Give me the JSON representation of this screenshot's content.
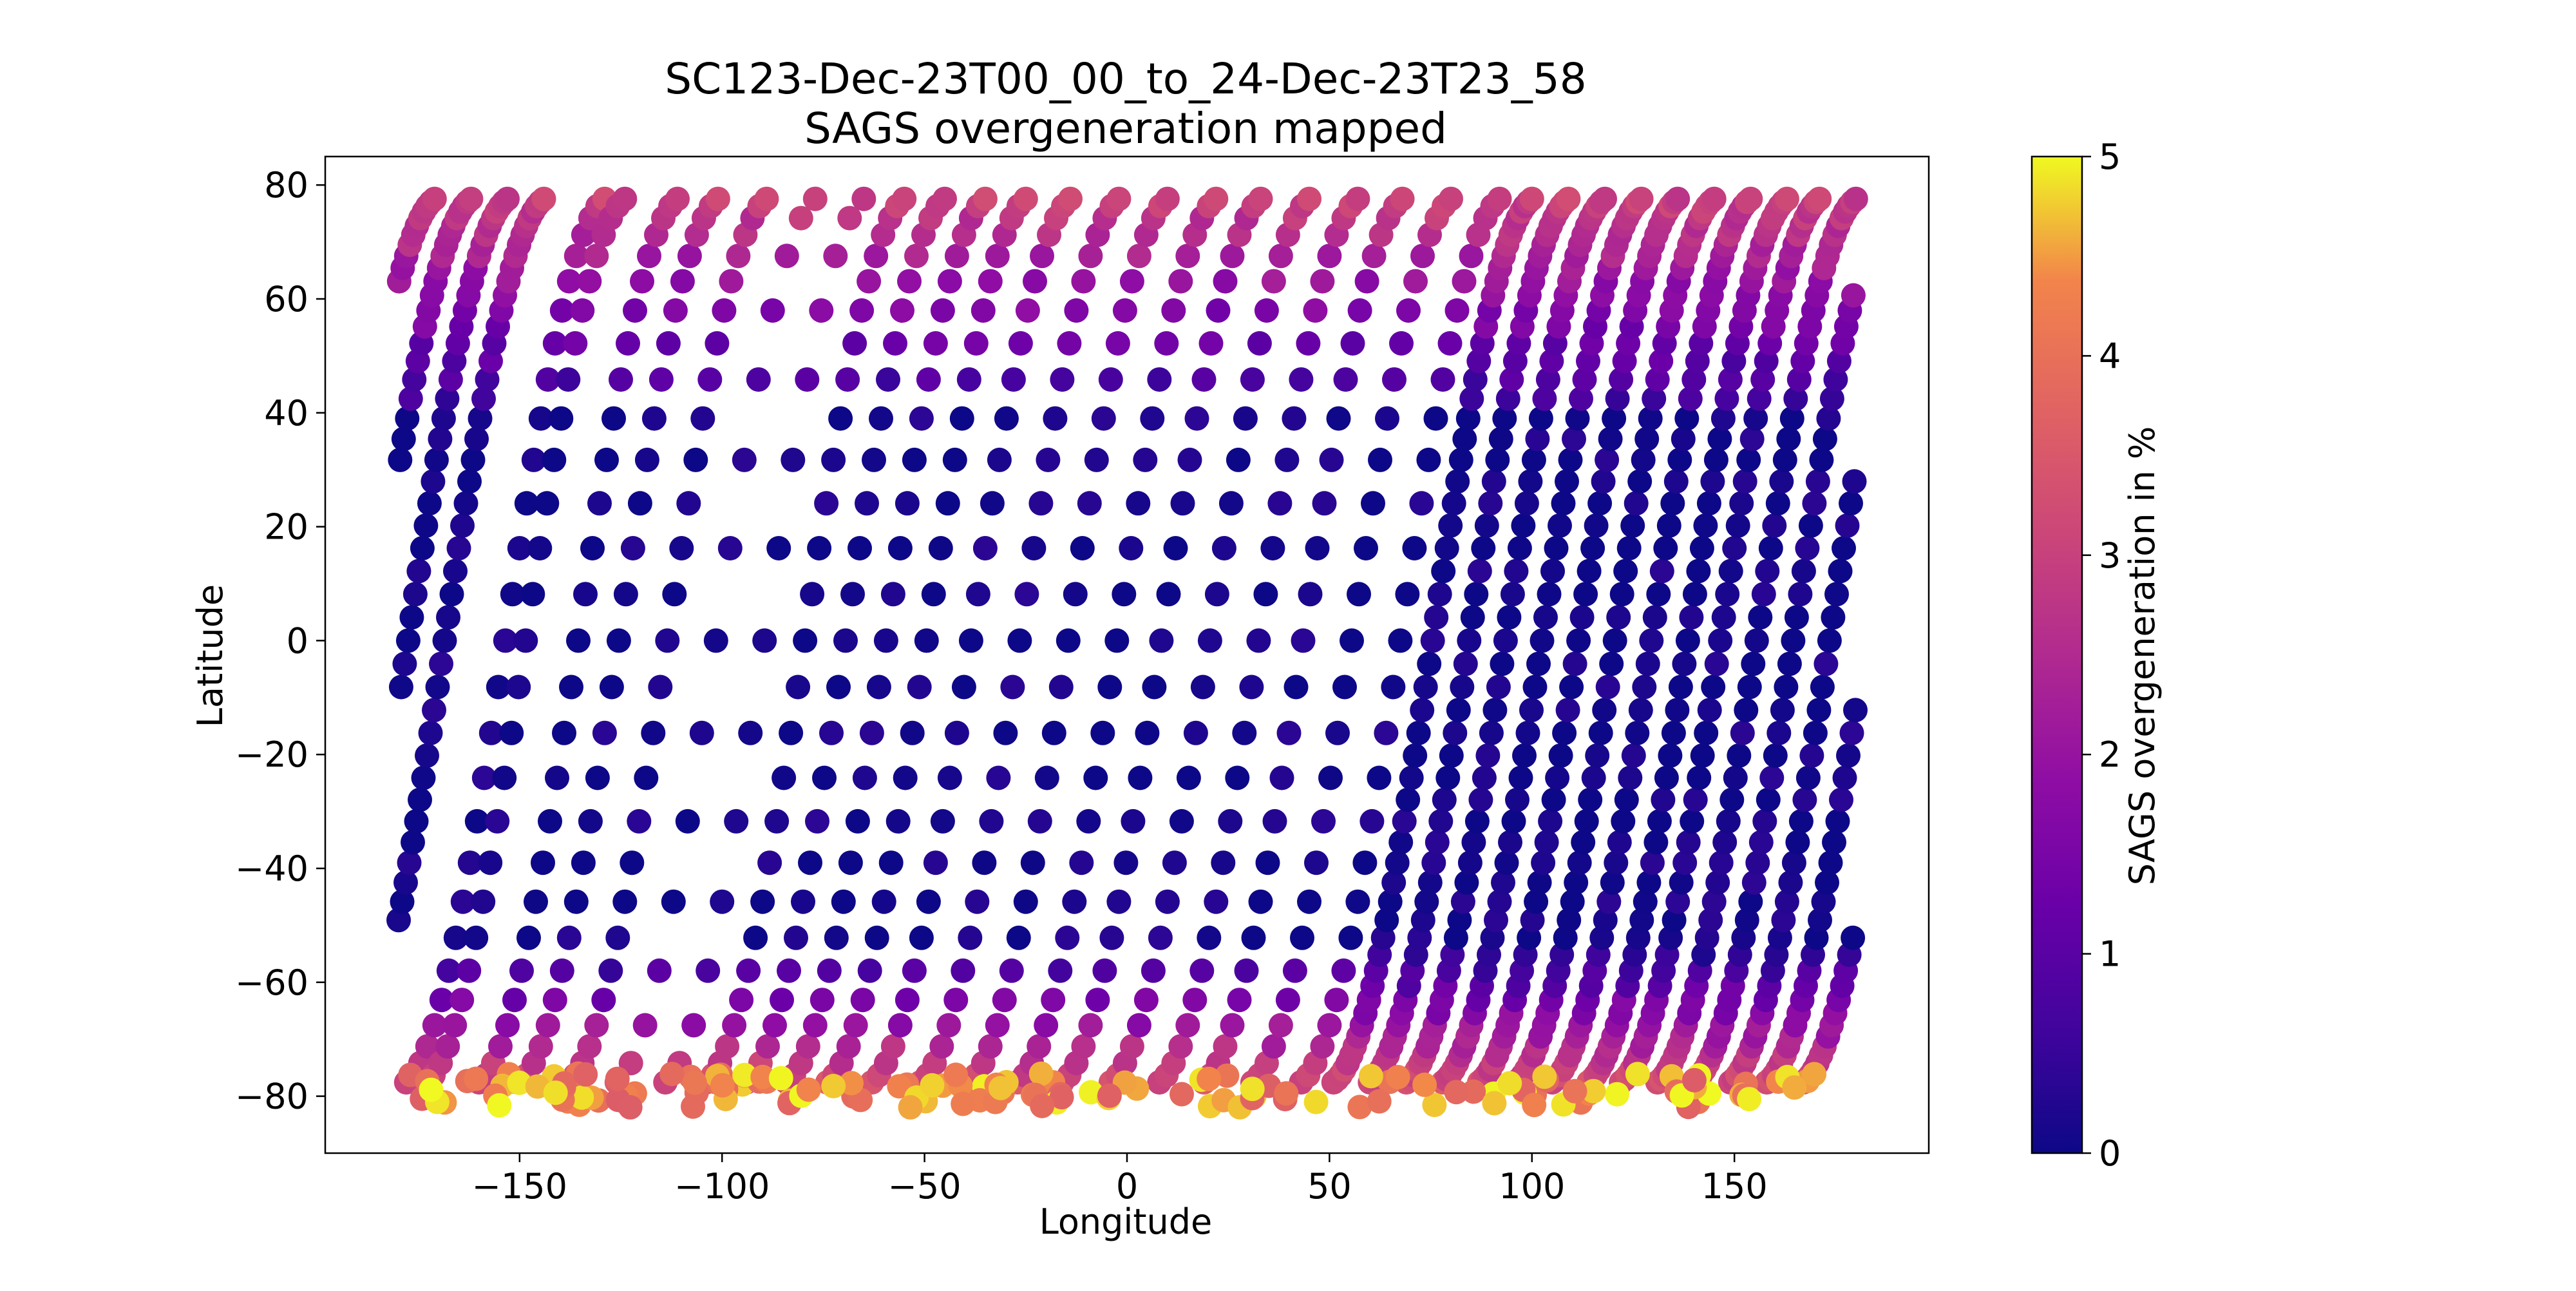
{
  "chart_data": {
    "type": "scatter",
    "title": "SC123-Dec-23T00_00_to_24-Dec-23T23_58",
    "subtitle": "SAGS overgeneration mapped",
    "xlabel": "Longitude",
    "ylabel": "Latitude",
    "xlim": [
      -198,
      198
    ],
    "ylim": [
      -90,
      85
    ],
    "x_ticks": [
      -150,
      -100,
      -50,
      0,
      50,
      100,
      150
    ],
    "x_tick_labels": [
      "−150",
      "−100",
      "−50",
      "0",
      "50",
      "100",
      "150"
    ],
    "y_ticks": [
      -80,
      -60,
      -40,
      -20,
      0,
      20,
      40,
      60,
      80
    ],
    "y_tick_labels": [
      "−80",
      "−60",
      "−40",
      "−20",
      "0",
      "20",
      "40",
      "60",
      "80"
    ],
    "grid": false,
    "colormap": "plasma",
    "colorbar": {
      "label": "SAGS overgeneration in %",
      "range": [
        0,
        5
      ],
      "ticks": [
        0,
        1,
        2,
        3,
        4,
        5
      ],
      "tick_labels": [
        "0",
        "1",
        "2",
        "3",
        "4",
        "5"
      ]
    },
    "series": [
      {
        "description_tracks": "ground tracks; each track is a curve from south to north, lat = 78*sin(phase), lon advances ~49 deg over the pass",
        "tracks": [
          {
            "start_lon": -178,
            "step": 6
          },
          {
            "start_lon": -173,
            "step": 6
          },
          {
            "start_lon": -160,
            "step": 6
          },
          {
            "start_lon": -150,
            "step": 6
          },
          {
            "start_lon": -138,
            "step": 6
          },
          {
            "start_lon": -126,
            "step": 12
          },
          {
            "start_lon": -114,
            "step": 12
          },
          {
            "start_lon": -104,
            "step": 6
          },
          {
            "start_lon": -94,
            "step": 6
          },
          {
            "start_lon": -84,
            "step": 6
          },
          {
            "start_lon": -74,
            "step": 6
          },
          {
            "start_lon": -63,
            "step": 6
          },
          {
            "start_lon": -51,
            "step": 6
          },
          {
            "start_lon": -39,
            "step": 6
          },
          {
            "start_lon": -27,
            "step": 6
          },
          {
            "start_lon": -16,
            "step": 6
          },
          {
            "start_lon": -4,
            "step": 6
          },
          {
            "start_lon": 8,
            "step": 6
          },
          {
            "start_lon": 19,
            "step": 6
          },
          {
            "start_lon": 31,
            "step": 6
          },
          {
            "start_lon": 43,
            "step": 6
          },
          {
            "start_lon": 51,
            "step": 3
          },
          {
            "start_lon": 60,
            "step": 3
          },
          {
            "start_lon": 69,
            "step": 3
          },
          {
            "start_lon": 78,
            "step": 3
          },
          {
            "start_lon": 87,
            "step": 3
          },
          {
            "start_lon": 96,
            "step": 3
          },
          {
            "start_lon": 105,
            "step": 3
          },
          {
            "start_lon": 114,
            "step": 3
          },
          {
            "start_lon": 122,
            "step": 3
          },
          {
            "start_lon": 131,
            "step": 3
          },
          {
            "start_lon": 140,
            "step": 3
          },
          {
            "start_lon": 149,
            "step": 3
          },
          {
            "start_lon": 158,
            "step": 3
          },
          {
            "start_lon": 167,
            "step": 3
          }
        ],
        "south_cluster_note": "many high values (4-5) clustered near lat -78 to -82 across all longitudes"
      }
    ]
  }
}
